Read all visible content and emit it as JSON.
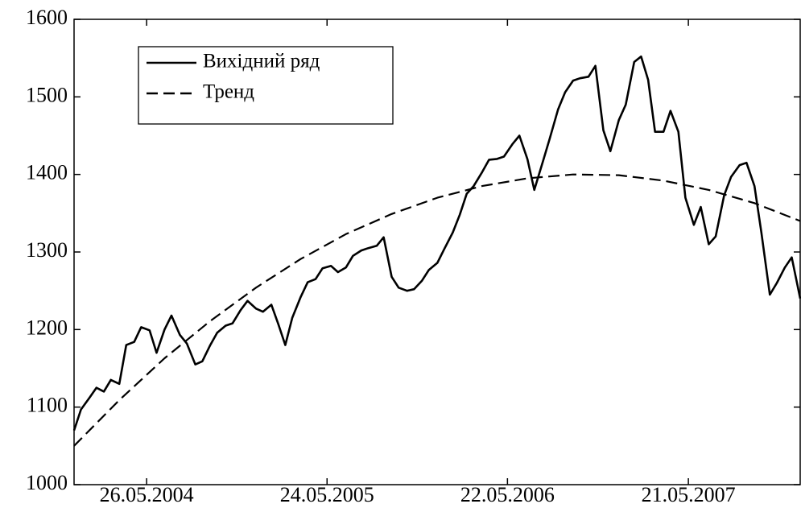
{
  "chart_data": {
    "type": "line",
    "xlim": [
      "2004-01-01",
      "2008-01-01"
    ],
    "xticks": [
      {
        "value": "2004-05-26",
        "label": "26.05.2004"
      },
      {
        "value": "2005-05-24",
        "label": "24.05.2005"
      },
      {
        "value": "2006-05-22",
        "label": "22.05.2006"
      },
      {
        "value": "2007-05-21",
        "label": "21.05.2007"
      }
    ],
    "ylim": [
      1000,
      1600
    ],
    "yticks": [
      1000,
      1100,
      1200,
      1300,
      1400,
      1500,
      1600
    ],
    "grid": false,
    "legend": "upper left",
    "series": [
      {
        "name": "Вихідний ряд",
        "color": "#000000",
        "dash": "solid",
        "x": [
          "2004-01-01",
          "2004-01-15",
          "2004-02-01",
          "2004-02-15",
          "2004-03-01",
          "2004-03-15",
          "2004-04-01",
          "2004-04-15",
          "2004-05-01",
          "2004-05-15",
          "2004-06-01",
          "2004-06-15",
          "2004-07-01",
          "2004-07-15",
          "2004-08-01",
          "2004-08-15",
          "2004-09-01",
          "2004-09-15",
          "2004-10-01",
          "2004-10-15",
          "2004-11-01",
          "2004-11-15",
          "2004-12-01",
          "2004-12-15",
          "2005-01-01",
          "2005-01-15",
          "2005-02-01",
          "2005-02-15",
          "2005-03-01",
          "2005-03-15",
          "2005-04-01",
          "2005-04-15",
          "2005-05-01",
          "2005-05-15",
          "2005-06-01",
          "2005-06-15",
          "2005-07-01",
          "2005-07-15",
          "2005-08-01",
          "2005-08-15",
          "2005-09-01",
          "2005-09-15",
          "2005-10-01",
          "2005-10-15",
          "2005-11-01",
          "2005-11-15",
          "2005-12-01",
          "2005-12-15",
          "2006-01-01",
          "2006-01-15",
          "2006-02-01",
          "2006-02-15",
          "2006-03-01",
          "2006-03-15",
          "2006-04-01",
          "2006-04-15",
          "2006-05-01",
          "2006-05-15",
          "2006-06-01",
          "2006-06-15",
          "2006-07-01",
          "2006-07-15",
          "2006-08-01",
          "2006-08-15",
          "2006-09-01",
          "2006-09-15",
          "2006-10-01",
          "2006-10-15",
          "2006-11-01",
          "2006-11-15",
          "2006-12-01",
          "2006-12-15",
          "2007-01-01",
          "2007-01-15",
          "2007-02-01",
          "2007-02-15",
          "2007-03-01",
          "2007-03-15",
          "2007-04-01",
          "2007-04-15",
          "2007-05-01",
          "2007-05-15",
          "2007-06-01",
          "2007-06-15",
          "2007-07-01",
          "2007-07-15",
          "2007-08-01",
          "2007-08-15",
          "2007-09-01",
          "2007-09-15",
          "2007-10-01",
          "2007-10-15",
          "2007-11-01",
          "2007-11-15",
          "2007-12-01",
          "2007-12-15",
          "2008-01-01"
        ],
        "values": [
          1070,
          1097,
          1112,
          1125,
          1120,
          1135,
          1130,
          1180,
          1184,
          1203,
          1199,
          1170,
          1200,
          1218,
          1193,
          1182,
          1155,
          1159,
          1180,
          1196,
          1205,
          1208,
          1225,
          1237,
          1227,
          1223,
          1232,
          1207,
          1180,
          1215,
          1242,
          1261,
          1265,
          1279,
          1282,
          1274,
          1280,
          1295,
          1302,
          1305,
          1308,
          1319,
          1268,
          1254,
          1250,
          1252,
          1263,
          1277,
          1286,
          1304,
          1325,
          1348,
          1375,
          1385,
          1403,
          1419,
          1420,
          1423,
          1439,
          1450,
          1420,
          1380,
          1416,
          1446,
          1484,
          1506,
          1521,
          1524,
          1526,
          1540,
          1457,
          1430,
          1470,
          1490,
          1545,
          1552,
          1522,
          1455,
          1455,
          1482,
          1455,
          1370,
          1335,
          1358,
          1310,
          1320,
          1373,
          1397,
          1412,
          1415,
          1385,
          1325,
          1245,
          1260,
          1280,
          1293,
          1240
        ]
      },
      {
        "name": "Тренд",
        "color": "#000000",
        "dash": "dashed",
        "x": [
          "2004-01-01",
          "2004-04-01",
          "2004-07-01",
          "2004-10-01",
          "2005-01-01",
          "2005-04-01",
          "2005-07-01",
          "2005-10-01",
          "2006-01-01",
          "2006-04-01",
          "2006-07-01",
          "2006-10-01",
          "2007-01-01",
          "2007-04-01",
          "2007-07-01",
          "2007-10-01",
          "2008-01-01"
        ],
        "values": [
          1050,
          1109,
          1163,
          1211,
          1254,
          1291,
          1323,
          1349,
          1370,
          1385,
          1395,
          1400,
          1399,
          1392,
          1380,
          1363,
          1340
        ]
      }
    ]
  }
}
